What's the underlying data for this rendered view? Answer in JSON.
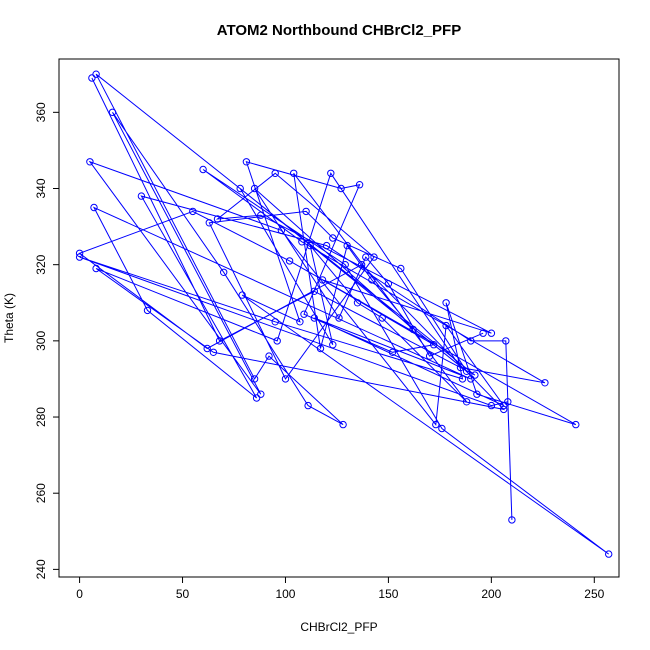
{
  "chart_data": {
    "type": "line",
    "title": "ATOM2 Northbound CHBrCl2_PFP",
    "xlabel": "CHBrCl2_PFP",
    "ylabel": "Theta (K)",
    "xlim": [
      -10,
      262
    ],
    "ylim": [
      238,
      374
    ],
    "xticks": [
      0,
      50,
      100,
      150,
      200,
      250
    ],
    "yticks": [
      240,
      260,
      280,
      300,
      320,
      340,
      360
    ],
    "grid": false,
    "legend": "none",
    "color": "#0000ff",
    "series": [
      {
        "values": [
          [
            6,
            369
          ],
          [
            68,
            300
          ],
          [
            114,
            313
          ],
          [
            192,
            291
          ],
          [
            8,
            370
          ],
          [
            85,
            290
          ],
          [
            92,
            296
          ],
          [
            128,
            278
          ],
          [
            111,
            283
          ],
          [
            70,
            318
          ],
          [
            16,
            360
          ],
          [
            88,
            286
          ],
          [
            5,
            347
          ],
          [
            98,
            329
          ],
          [
            173,
            278
          ],
          [
            178,
            304
          ],
          [
            206,
            283
          ],
          [
            114,
            306
          ],
          [
            190,
            290
          ],
          [
            7,
            335
          ],
          [
            33,
            308
          ],
          [
            86,
            285
          ],
          [
            30,
            338
          ],
          [
            120,
            325
          ],
          [
            190,
            300
          ],
          [
            207,
            300
          ],
          [
            210,
            253
          ],
          [
            208,
            284
          ],
          [
            200,
            283
          ],
          [
            0,
            322
          ],
          [
            95,
            305
          ],
          [
            186,
            290
          ],
          [
            178,
            310
          ],
          [
            193,
            286
          ],
          [
            241,
            278
          ],
          [
            102,
            321
          ],
          [
            55,
            334
          ],
          [
            0,
            323
          ],
          [
            62,
            298
          ],
          [
            137,
            320
          ],
          [
            206,
            282
          ],
          [
            65,
            297
          ],
          [
            8,
            319
          ],
          [
            96,
            300
          ],
          [
            122,
            344
          ],
          [
            185,
            293
          ],
          [
            226,
            289
          ],
          [
            108,
            326
          ],
          [
            60,
            345
          ],
          [
            129,
            320
          ],
          [
            176,
            277
          ],
          [
            257,
            244
          ],
          [
            79,
            312
          ],
          [
            107,
            305
          ],
          [
            81,
            347
          ],
          [
            127,
            340
          ],
          [
            136,
            341
          ],
          [
            109,
            307
          ],
          [
            152,
            297
          ],
          [
            172,
            299
          ],
          [
            118,
            316
          ],
          [
            200,
            302
          ],
          [
            88,
            333
          ],
          [
            67,
            332
          ],
          [
            95,
            344
          ],
          [
            143,
            322
          ],
          [
            100,
            290
          ],
          [
            63,
            331
          ],
          [
            110,
            334
          ],
          [
            123,
            327
          ],
          [
            156,
            319
          ],
          [
            188,
            292
          ],
          [
            78,
            340
          ],
          [
            123,
            299
          ],
          [
            112,
            325
          ],
          [
            135,
            310
          ],
          [
            147,
            306
          ],
          [
            188,
            284
          ],
          [
            104,
            344
          ],
          [
            117,
            298
          ],
          [
            130,
            325
          ],
          [
            142,
            316
          ],
          [
            162,
            303
          ],
          [
            85,
            340
          ],
          [
            126,
            306
          ],
          [
            139,
            322
          ],
          [
            150,
            315
          ],
          [
            170,
            296
          ],
          [
            196,
            302
          ]
        ]
      }
    ]
  }
}
